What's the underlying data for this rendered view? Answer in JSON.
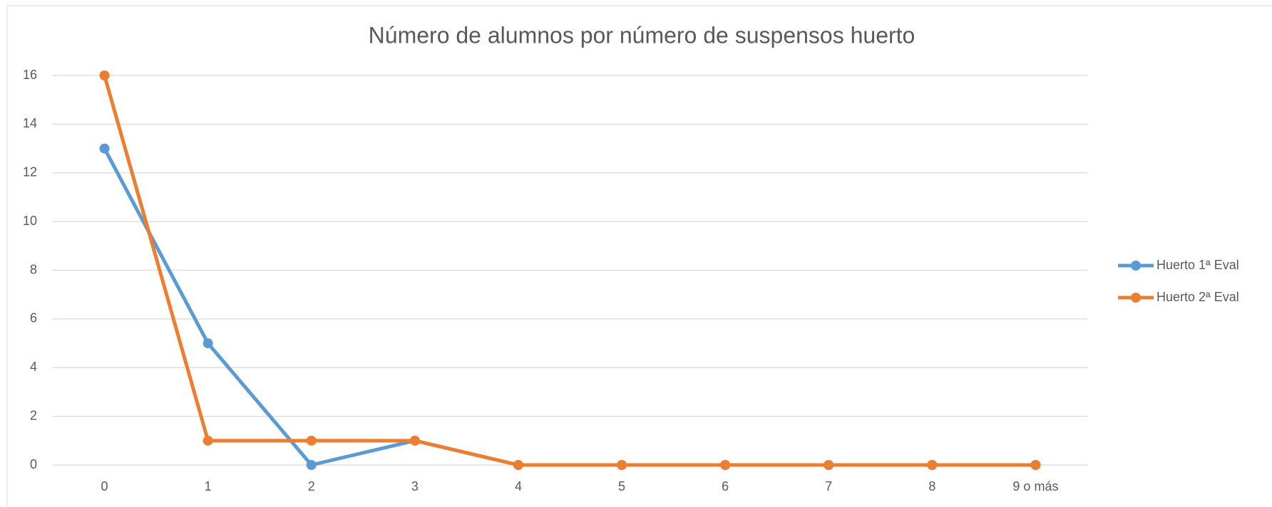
{
  "chart_data": {
    "type": "line",
    "title": "Número de alumnos por número de suspensos huerto",
    "categories": [
      "0",
      "1",
      "2",
      "3",
      "4",
      "5",
      "6",
      "7",
      "8",
      "9 o más"
    ],
    "series": [
      {
        "name": "Huerto 1ª Eval",
        "color": "#5b9bd5",
        "values": [
          13,
          5,
          0,
          1,
          0,
          0,
          0,
          0,
          0,
          0
        ]
      },
      {
        "name": "Huerto 2ª Eval",
        "color": "#ed7d31",
        "values": [
          16,
          1,
          1,
          1,
          0,
          0,
          0,
          0,
          0,
          0
        ]
      }
    ],
    "ylim": [
      0,
      16
    ],
    "yticks": [
      0,
      2,
      4,
      6,
      8,
      10,
      12,
      14,
      16
    ],
    "grid": true,
    "legend": "right"
  }
}
